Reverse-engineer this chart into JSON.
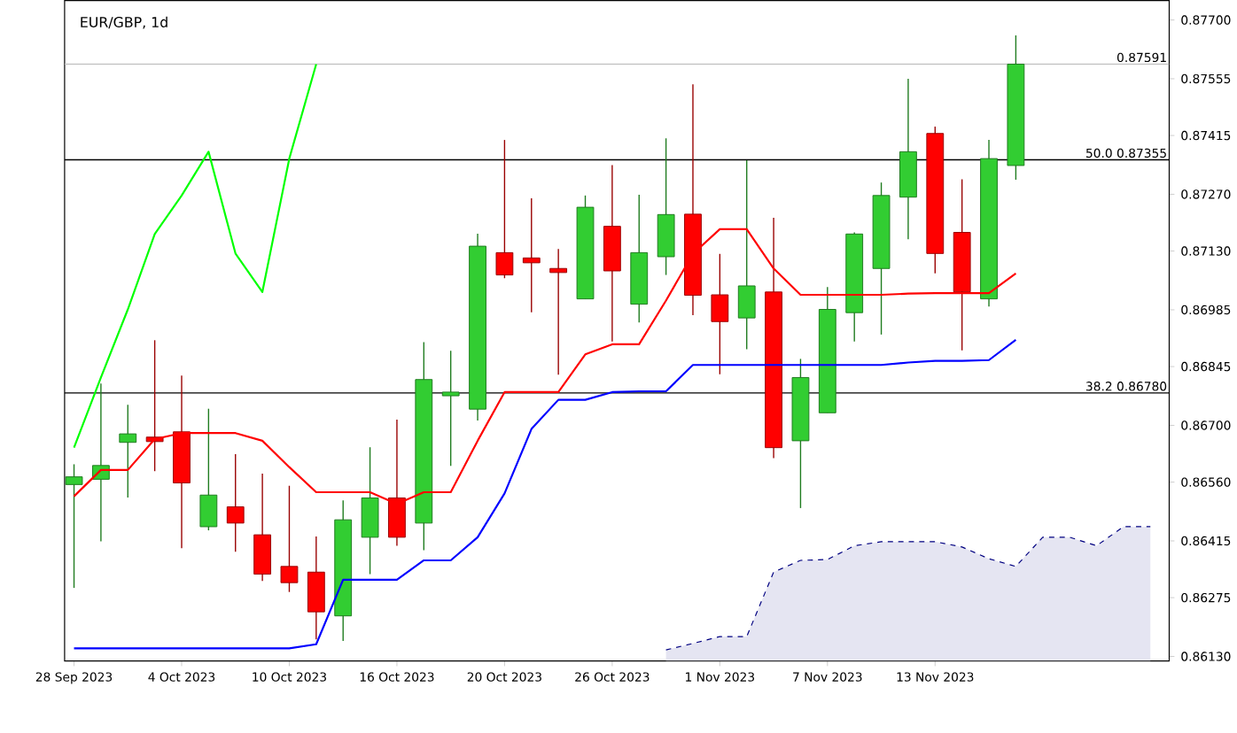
{
  "chart_data": {
    "type": "candlestick",
    "title": "EUR/GBP, 1d",
    "categories": [
      "28 Sep 2023",
      null,
      null,
      null,
      "4 Oct 2023",
      null,
      null,
      null,
      "10 Oct 2023",
      null,
      null,
      null,
      "16 Oct 2023",
      null,
      null,
      null,
      "20 Oct 2023",
      null,
      null,
      null,
      "26 Oct 2023",
      null,
      null,
      null,
      "1 Nov 2023",
      null,
      null,
      null,
      "7 Nov 2023",
      null,
      null,
      null,
      "13 Nov 2023",
      null,
      null,
      null,
      null,
      null,
      null,
      null,
      null
    ],
    "ohlc": [
      [
        0.86554,
        0.86604,
        0.86299,
        0.86573
      ],
      [
        0.86567,
        0.86803,
        0.86414,
        0.86601
      ],
      [
        0.86658,
        0.86751,
        0.86522,
        0.86679
      ],
      [
        0.86671,
        0.8691,
        0.86587,
        0.8666
      ],
      [
        0.86684,
        0.86823,
        0.86397,
        0.86558
      ],
      [
        0.8645,
        0.86741,
        0.86441,
        0.86528
      ],
      [
        0.86499,
        0.86629,
        0.86388,
        0.86459
      ],
      [
        0.8643,
        0.86581,
        0.86316,
        0.86333
      ],
      [
        0.86352,
        0.86551,
        0.86289,
        0.86312
      ],
      [
        0.86338,
        0.86426,
        0.86172,
        0.8624
      ],
      [
        0.8623,
        0.86515,
        0.86168,
        0.86467
      ],
      [
        0.86424,
        0.86646,
        0.86333,
        0.86521
      ],
      [
        0.86521,
        0.86714,
        0.86403,
        0.86424
      ],
      [
        0.86459,
        0.86905,
        0.86392,
        0.86813
      ],
      [
        0.86773,
        0.86884,
        0.866,
        0.86782
      ],
      [
        0.8674,
        0.87173,
        0.86712,
        0.87142
      ],
      [
        0.87126,
        0.87404,
        0.87063,
        0.87071
      ],
      [
        0.87113,
        0.8726,
        0.86979,
        0.87101
      ],
      [
        0.87087,
        0.87135,
        0.86825,
        0.87077
      ],
      [
        0.87012,
        0.87267,
        0.87012,
        0.87238
      ],
      [
        0.87191,
        0.87342,
        0.86907,
        0.87081
      ],
      [
        0.86999,
        0.87269,
        0.86954,
        0.87126
      ],
      [
        0.87116,
        0.87408,
        0.87071,
        0.8722
      ],
      [
        0.87221,
        0.87541,
        0.86972,
        0.87021
      ],
      [
        0.87022,
        0.87123,
        0.86826,
        0.86956
      ],
      [
        0.86965,
        0.87354,
        0.86888,
        0.87044
      ],
      [
        0.87029,
        0.87212,
        0.86619,
        0.86645
      ],
      [
        0.86662,
        0.86864,
        0.86496,
        0.86818
      ],
      [
        0.86731,
        0.87041,
        0.86731,
        0.86986
      ],
      [
        0.86978,
        0.87176,
        0.86907,
        0.87172
      ],
      [
        0.87087,
        0.87299,
        0.86924,
        0.87267
      ],
      [
        0.87263,
        0.87555,
        0.87159,
        0.87375
      ],
      [
        0.8742,
        0.87437,
        0.87075,
        0.87124
      ],
      [
        0.87176,
        0.87307,
        0.86885,
        0.87029
      ],
      [
        0.87012,
        0.87404,
        0.86993,
        0.87358
      ],
      [
        0.87341,
        0.87662,
        0.87306,
        0.87591
      ],
      null,
      null,
      null,
      null,
      null
    ],
    "colors": [
      "#32cd32",
      "#32cd32",
      "#32cd32",
      "#ff0000",
      "#ff0000",
      "#32cd32",
      "#ff0000",
      "#ff0000",
      "#ff0000",
      "#ff0000",
      "#32cd32",
      "#32cd32",
      "#ff0000",
      "#32cd32",
      "#32cd32",
      "#32cd32",
      "#ff0000",
      "#ff0000",
      "#ff0000",
      "#32cd32",
      "#ff0000",
      "#32cd32",
      "#32cd32",
      "#ff0000",
      "#ff0000",
      "#32cd32",
      "#ff0000",
      "#32cd32",
      "#32cd32",
      "#32cd32",
      "#32cd32",
      "#32cd32",
      "#ff0000",
      "#ff0000",
      "#32cd32",
      "#32cd32",
      null,
      null,
      null,
      null,
      null
    ],
    "series": [
      {
        "type": "line",
        "color": "#ff0000",
        "values": [
          0.86525,
          0.8659,
          0.8659,
          0.86666,
          0.86681,
          0.86681,
          0.86681,
          0.86662,
          0.86597,
          0.86535,
          0.86535,
          0.86535,
          0.86506,
          0.86535,
          0.86535,
          0.86662,
          0.86782,
          0.86782,
          0.86782,
          0.86875,
          0.869,
          0.869,
          0.87008,
          0.87123,
          0.87184,
          0.87184,
          0.87087,
          0.87022,
          0.87022,
          0.87022,
          0.87022,
          0.87025,
          0.87026,
          0.87026,
          0.87026,
          0.87075,
          null,
          null,
          null,
          null,
          null
        ]
      },
      {
        "type": "line",
        "color": "#0000ff",
        "values": [
          0.8615,
          0.8615,
          0.8615,
          0.8615,
          0.8615,
          0.8615,
          0.8615,
          0.8615,
          0.8615,
          0.8616,
          0.86319,
          0.86319,
          0.86319,
          0.86367,
          0.86367,
          0.86424,
          0.86532,
          0.86691,
          0.86763,
          0.86763,
          0.86782,
          0.86784,
          0.86784,
          0.86849,
          0.86849,
          0.86849,
          0.86849,
          0.86849,
          0.86849,
          0.86849,
          0.86849,
          0.86855,
          0.86859,
          0.86859,
          0.86861,
          0.86911,
          null,
          null,
          null,
          null,
          null
        ]
      },
      {
        "type": "line",
        "color": "#00ff00",
        "values": [
          0.86645,
          0.86818,
          0.86986,
          0.87172,
          0.87267,
          0.87375,
          0.87124,
          0.87029,
          0.87358,
          0.87591,
          null,
          null,
          null,
          null,
          null,
          null,
          null,
          null,
          null,
          null,
          null,
          null,
          null,
          null,
          null,
          null,
          null,
          null,
          null,
          null,
          null,
          null,
          null,
          null,
          null,
          null,
          null,
          null,
          null,
          null,
          null
        ]
      },
      {
        "type": "area",
        "color": "#000080",
        "line_style": "dashed",
        "values": [
          null,
          null,
          null,
          null,
          null,
          null,
          null,
          null,
          null,
          null,
          null,
          null,
          null,
          null,
          null,
          null,
          null,
          null,
          null,
          null,
          null,
          null,
          0.86146,
          0.86162,
          0.86179,
          0.86179,
          0.86338,
          0.86367,
          0.86369,
          0.86403,
          0.86413,
          0.86413,
          0.86413,
          0.864,
          0.86371,
          0.86352,
          0.86424,
          0.86424,
          0.86403,
          0.8645,
          0.8645
        ]
      }
    ],
    "ylim": [
      0.86119,
      0.87748
    ],
    "yticks": [
      {
        "value": 0.8613,
        "label": "0.86130"
      },
      {
        "value": 0.86275,
        "label": "0.86275"
      },
      {
        "value": 0.86415,
        "label": "0.86415"
      },
      {
        "value": 0.8656,
        "label": "0.86560"
      },
      {
        "value": 0.867,
        "label": "0.86700"
      },
      {
        "value": 0.86845,
        "label": "0.86845"
      },
      {
        "value": 0.86985,
        "label": "0.86985"
      },
      {
        "value": 0.8713,
        "label": "0.87130"
      },
      {
        "value": 0.8727,
        "label": "0.87270"
      },
      {
        "value": 0.87415,
        "label": "0.87415"
      },
      {
        "value": 0.87555,
        "label": "0.87555"
      },
      {
        "value": 0.877,
        "label": "0.87700"
      }
    ],
    "ref_lines": [
      {
        "axis": "y",
        "value": 0.87591,
        "label": "0.87591",
        "color": "#c0c0c0"
      },
      {
        "axis": "y",
        "value": 0.87355,
        "label": "50.0 0.87355",
        "color": "#000000"
      },
      {
        "axis": "y",
        "value": 0.8678,
        "label": "38.2 0.86780",
        "color": "#000000"
      }
    ],
    "grid": false
  }
}
